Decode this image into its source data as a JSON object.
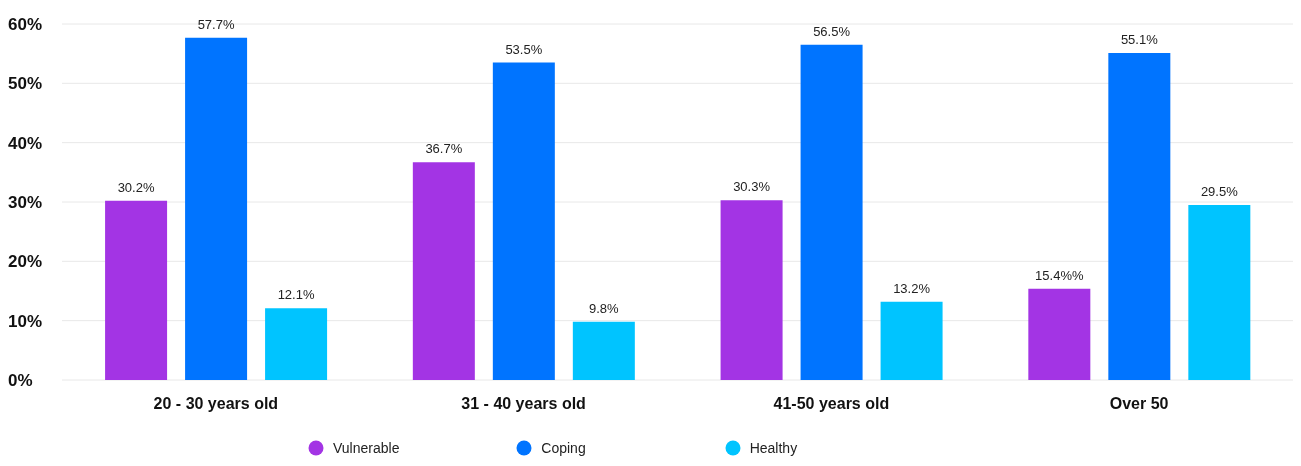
{
  "chart_data": {
    "type": "bar",
    "categories": [
      "20 - 30 years old",
      "31 - 40 years old",
      "41-50 years old",
      "Over 50"
    ],
    "series": [
      {
        "name": "Vulnerable",
        "color": "#a334e4",
        "values": [
          30.2,
          36.7,
          30.3,
          15.4
        ],
        "value_labels": [
          "30.2%",
          "36.7%",
          "30.3%",
          "15.4%%"
        ]
      },
      {
        "name": "Coping",
        "color": "#0074ff",
        "values": [
          57.7,
          53.5,
          56.5,
          55.1
        ],
        "value_labels": [
          "57.7%",
          "53.5%",
          "56.5%",
          "55.1%"
        ]
      },
      {
        "name": "Healthy",
        "color": "#00c4ff",
        "values": [
          12.1,
          9.8,
          13.2,
          29.5
        ],
        "value_labels": [
          "12.1%",
          "9.8%",
          "13.2%",
          "29.5%"
        ]
      }
    ],
    "ylim": [
      0,
      60
    ],
    "yticks": [
      {
        "value": 0,
        "label": "0%"
      },
      {
        "value": 10,
        "label": "10%"
      },
      {
        "value": 20,
        "label": "20%"
      },
      {
        "value": 30,
        "label": "30%"
      },
      {
        "value": 40,
        "label": "40%"
      },
      {
        "value": 50,
        "label": "50%"
      },
      {
        "value": 60,
        "label": "60%"
      }
    ],
    "grid": "y",
    "legend": "bottom"
  }
}
